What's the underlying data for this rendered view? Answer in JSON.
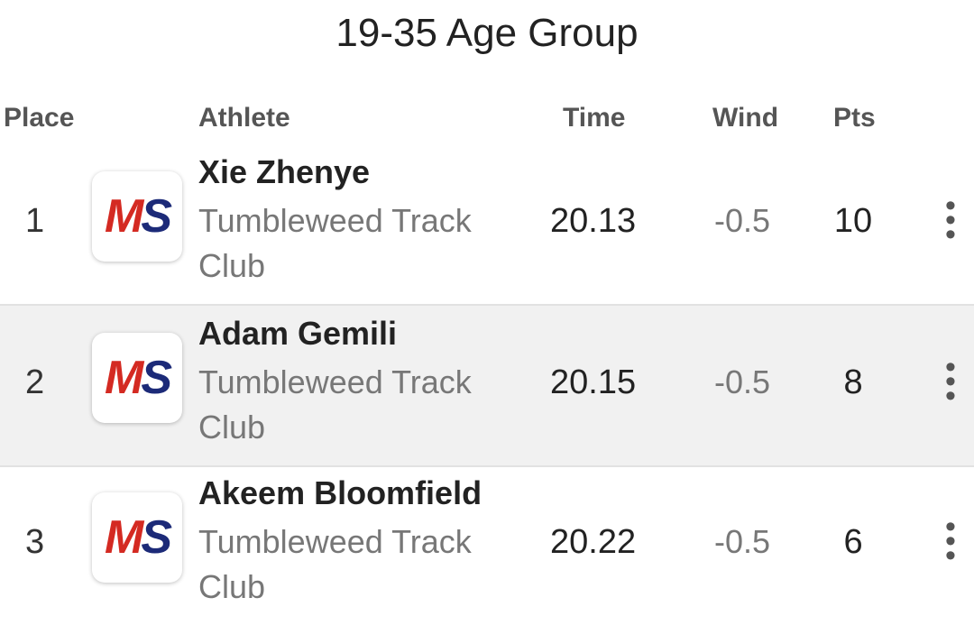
{
  "title": "19-35 Age Group",
  "columns": {
    "place": "Place",
    "athlete": "Athlete",
    "time": "Time",
    "wind": "Wind",
    "pts": "Pts"
  },
  "logo": {
    "text_m": "M",
    "text_s": "S",
    "colors": {
      "m": "#d42a22",
      "s": "#1c2a78"
    }
  },
  "rows": [
    {
      "place": "1",
      "name": "Xie Zhenye",
      "club": "Tumbleweed Track Club",
      "time": "20.13",
      "wind": "-0.5",
      "pts": "10"
    },
    {
      "place": "2",
      "name": "Adam Gemili",
      "club": "Tumbleweed Track Club",
      "time": "20.15",
      "wind": "-0.5",
      "pts": "8"
    },
    {
      "place": "3",
      "name": "Akeem Bloomfield",
      "club": "Tumbleweed Track Club",
      "time": "20.22",
      "wind": "-0.5",
      "pts": "6"
    }
  ],
  "more_icon": "more-vertical-icon"
}
